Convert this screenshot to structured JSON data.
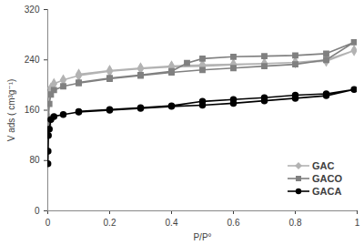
{
  "chart_data": {
    "type": "line",
    "xlabel": "P/P°",
    "ylabel": "V ads ( cm³g⁻¹)",
    "xlim": [
      0,
      1
    ],
    "xticks": [
      0,
      0.2,
      0.4,
      0.6,
      0.8,
      1
    ],
    "ylim": [
      0,
      320
    ],
    "yticks": [
      0,
      80,
      160,
      240,
      320
    ],
    "grid": false,
    "legend": "lower right",
    "series": [
      {
        "name": "GAC",
        "color": "#b3b3b3",
        "marker": "diamond",
        "x": [
          0.001,
          0.005,
          0.01,
          0.02,
          0.05,
          0.1,
          0.2,
          0.3,
          0.4,
          0.5,
          0.6,
          0.7,
          0.8,
          0.9,
          0.99,
          0.9,
          0.8,
          0.7,
          0.6,
          0.5,
          0.4,
          0.3,
          0.2,
          0.1
        ],
        "values": [
          150,
          185,
          195,
          202,
          208,
          215,
          222,
          226,
          229,
          230,
          232,
          234,
          236,
          240,
          255,
          238,
          236,
          234,
          233,
          232,
          230,
          227,
          223,
          217
        ]
      },
      {
        "name": "GACO",
        "color": "#808080",
        "marker": "square",
        "x": [
          0.001,
          0.005,
          0.01,
          0.02,
          0.05,
          0.1,
          0.2,
          0.3,
          0.4,
          0.5,
          0.6,
          0.7,
          0.8,
          0.9,
          0.99,
          0.9,
          0.8,
          0.7,
          0.6,
          0.5,
          0.45,
          0.4,
          0.3,
          0.2,
          0.1
        ],
        "values": [
          140,
          170,
          185,
          192,
          198,
          203,
          210,
          215,
          220,
          224,
          227,
          230,
          233,
          240,
          268,
          250,
          247,
          246,
          245,
          242,
          235,
          222,
          216,
          211,
          204
        ]
      },
      {
        "name": "GACA",
        "color": "#000000",
        "marker": "circle",
        "x": [
          0.0005,
          0.001,
          0.002,
          0.005,
          0.01,
          0.02,
          0.05,
          0.1,
          0.2,
          0.3,
          0.4,
          0.5,
          0.6,
          0.7,
          0.8,
          0.9,
          0.99,
          0.9,
          0.8,
          0.7,
          0.6,
          0.5,
          0.4,
          0.3,
          0.2,
          0.1
        ],
        "values": [
          75,
          95,
          120,
          130,
          145,
          150,
          153,
          157,
          160,
          163,
          166,
          168,
          171,
          175,
          179,
          183,
          193,
          186,
          184,
          180,
          177,
          174,
          167,
          164,
          161,
          158
        ]
      }
    ]
  }
}
